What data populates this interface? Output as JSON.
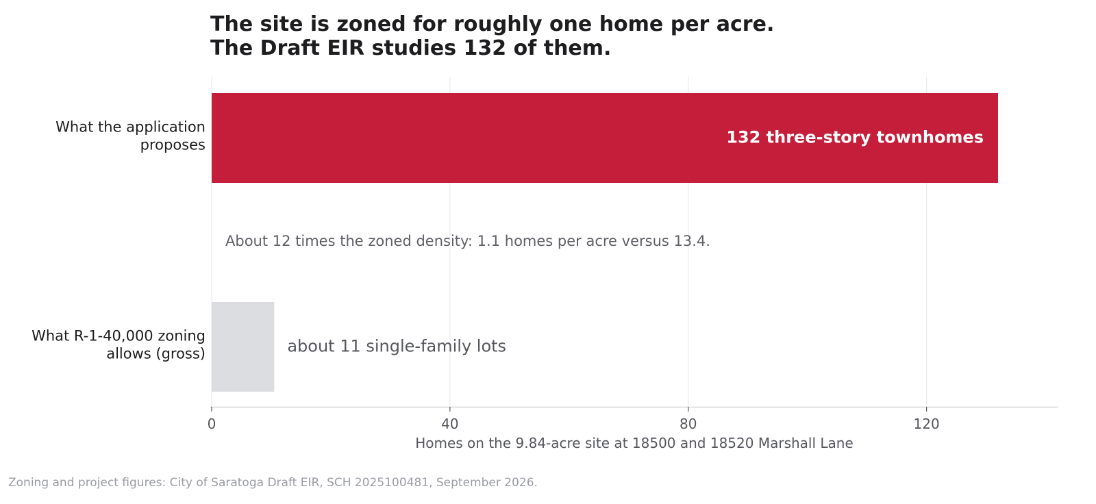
{
  "chart_data": {
    "type": "bar",
    "orientation": "horizontal",
    "title_lines": [
      "The site is zoned for roughly one home per acre.",
      "The Draft EIR studies 132 of them."
    ],
    "categories": [
      [
        "What the application",
        "proposes"
      ],
      [
        "What R-1-40,000 zoning",
        "allows (gross)"
      ]
    ],
    "values": [
      132,
      10.5
    ],
    "bar_colors": [
      "#c41e3a",
      "#dcdde0"
    ],
    "data_labels": [
      "132 three-story townhomes",
      "about 11 single-family lots"
    ],
    "data_label_position": [
      "inside-end",
      "outside-end"
    ],
    "annotation": "About 12 times the zoned density: 1.1 homes per acre versus 13.4.",
    "xlabel": "Homes on the 9.84-acre site at 18500 and 18520 Marshall Lane",
    "xticks": [
      0,
      40,
      80,
      120
    ],
    "xlim": [
      0,
      142.5
    ],
    "grid": "vertical",
    "source": "Zoning and project figures: City of Saratoga Draft EIR, SCH 2025100481, September 2026."
  }
}
